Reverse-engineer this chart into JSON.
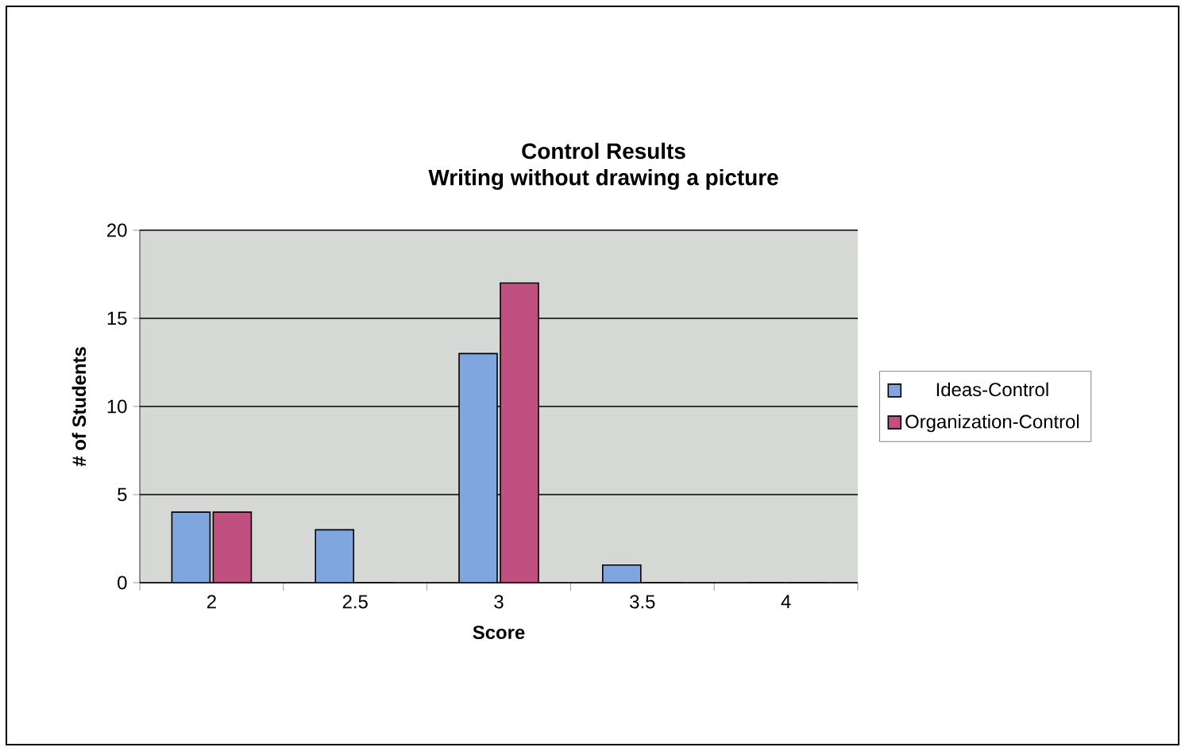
{
  "chart_data": {
    "type": "bar",
    "title": "Control Results",
    "subtitle": "Writing without drawing a picture",
    "xlabel": "Score",
    "ylabel": "# of Students",
    "categories": [
      "2",
      "2.5",
      "3",
      "3.5",
      "4"
    ],
    "series": [
      {
        "name": "Ideas-Control",
        "color": "#7fa6df",
        "values": [
          4,
          3,
          13,
          1,
          0
        ]
      },
      {
        "name": "Organization-Control",
        "color": "#c0507f",
        "values": [
          4,
          0,
          17,
          0,
          0
        ]
      }
    ],
    "ylim": [
      0,
      20
    ],
    "yticks": [
      0,
      5,
      10,
      15,
      20
    ],
    "grid": "y",
    "legend": "right"
  }
}
